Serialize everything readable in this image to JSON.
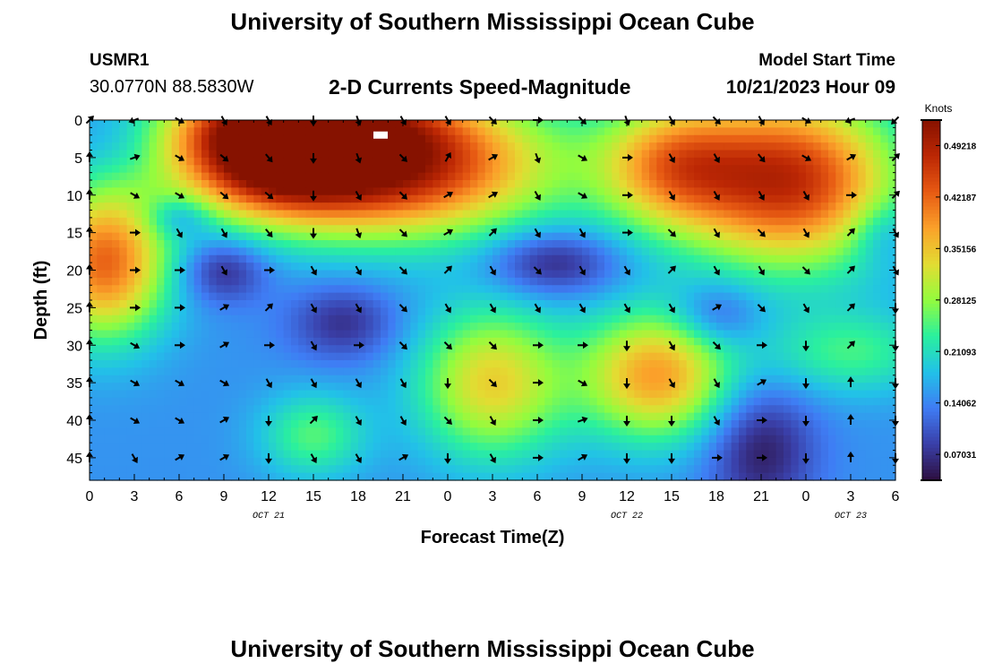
{
  "header": {
    "title": "University of Southern Mississippi Ocean Cube",
    "station_id": "USMR1",
    "station_coords": "30.0770N  88.5830W",
    "plot_subtitle": "2-D Currents Speed-Magnitude",
    "model_label": "Model Start Time",
    "model_time": "10/21/2023 Hour 09"
  },
  "footer": {
    "title": "University of Southern Mississippi Ocean Cube"
  },
  "chart_data": {
    "type": "heatmap",
    "title": "2-D Currents Speed-Magnitude",
    "xlabel": "Forecast Time(Z)",
    "ylabel": "Depth (ft)",
    "x_tick_labels": [
      "0",
      "3",
      "6",
      "9",
      "12",
      "15",
      "18",
      "21",
      "0",
      "3",
      "6",
      "9",
      "12",
      "15",
      "18",
      "21",
      "0",
      "3",
      "6"
    ],
    "x_hours": [
      0,
      3,
      6,
      9,
      12,
      15,
      18,
      21,
      24,
      27,
      30,
      33,
      36,
      39,
      42,
      45,
      48,
      51,
      54
    ],
    "x_range_hours": [
      0,
      54
    ],
    "date_labels": [
      {
        "text": "OCT 21",
        "hour": 12
      },
      {
        "text": "OCT 22",
        "hour": 36
      },
      {
        "text": "OCT 23",
        "hour": 51
      }
    ],
    "y_ticks": [
      0,
      5,
      10,
      15,
      20,
      25,
      30,
      35,
      40,
      45
    ],
    "y_range": [
      0,
      48
    ],
    "y_inverted": true,
    "colorbar": {
      "label": "Knots",
      "range": [
        0.035,
        0.527
      ],
      "ticks": [
        "0.07031",
        "0.14062",
        "0.21093",
        "0.28125",
        "0.35156",
        "0.42187",
        "0.49218"
      ],
      "tick_values": [
        0.07031,
        0.14062,
        0.21093,
        0.28125,
        0.35156,
        0.42187,
        0.49218
      ],
      "colors": [
        "#2d0f3f",
        "#3a3fa8",
        "#3f7cf4",
        "#22c1e8",
        "#2af09e",
        "#93fc3e",
        "#e3dc32",
        "#fba12a",
        "#e75a13",
        "#bc2704",
        "#861200"
      ]
    },
    "speed_field": {
      "background": 0.15,
      "features": [
        {
          "hour": 20,
          "depth": 6,
          "sh": 7.5,
          "sd": 6.5,
          "amp": 0.36
        },
        {
          "hour": 12,
          "depth": 4,
          "sh": 4.5,
          "sd": 5.5,
          "amp": 0.3
        },
        {
          "hour": 15,
          "depth": 0,
          "sh": 6.0,
          "sd": 3.5,
          "amp": 0.16
        },
        {
          "hour": 39,
          "depth": 6,
          "sh": 3.5,
          "sd": 6.0,
          "amp": 0.2
        },
        {
          "hour": 47,
          "depth": 8,
          "sh": 5.0,
          "sd": 8.0,
          "amp": 0.32
        },
        {
          "hour": 1,
          "depth": 19,
          "sh": 3.0,
          "sd": 7.0,
          "amp": 0.27
        },
        {
          "hour": 27,
          "depth": 35,
          "sh": 3.5,
          "sd": 7.0,
          "amp": 0.19
        },
        {
          "hour": 38,
          "depth": 34,
          "sh": 3.5,
          "sd": 6.0,
          "amp": 0.23
        },
        {
          "hour": 51,
          "depth": 31,
          "sh": 4.0,
          "sd": 4.0,
          "amp": 0.09
        },
        {
          "hour": 15,
          "depth": 42,
          "sh": 2.5,
          "sd": 4.0,
          "amp": 0.1
        },
        {
          "hour": 9,
          "depth": 20,
          "sh": 2.0,
          "sd": 3.0,
          "amp": -0.09
        },
        {
          "hour": 17,
          "depth": 27,
          "sh": 2.5,
          "sd": 3.5,
          "amp": -0.08
        },
        {
          "hour": 31,
          "depth": 19,
          "sh": 3.0,
          "sd": 3.0,
          "amp": -0.1
        },
        {
          "hour": 42,
          "depth": 26,
          "sh": 2.0,
          "sd": 3.0,
          "amp": -0.07
        },
        {
          "hour": 45,
          "depth": 44,
          "sh": 2.5,
          "sd": 6.0,
          "amp": -0.1
        },
        {
          "hour": 6,
          "depth": 13,
          "sh": 1.5,
          "sd": 2.0,
          "amp": -0.07
        },
        {
          "hour": 53,
          "depth": 15,
          "sh": 1.5,
          "sd": 3.0,
          "amp": -0.05
        },
        {
          "hour": 2,
          "depth": 3,
          "sh": 2.0,
          "sd": 3.0,
          "amp": -0.02
        }
      ]
    },
    "vector_hours": [
      0,
      3,
      6,
      9,
      12,
      15,
      18,
      21,
      24,
      27,
      30,
      33,
      36,
      39,
      42,
      45,
      48,
      51,
      54
    ],
    "vector_depths": [
      0,
      5,
      10,
      15,
      20,
      25,
      30,
      35,
      40,
      45
    ],
    "vector_directions_deg": [
      [
        45,
        200,
        330,
        300,
        300,
        270,
        290,
        300,
        300,
        315,
        0,
        315,
        290,
        300,
        315,
        300,
        330,
        200,
        225
      ],
      [
        90,
        20,
        330,
        320,
        310,
        270,
        290,
        315,
        60,
        30,
        290,
        330,
        0,
        300,
        300,
        310,
        330,
        30,
        45
      ],
      [
        90,
        330,
        330,
        320,
        320,
        270,
        300,
        315,
        30,
        30,
        300,
        330,
        0,
        300,
        300,
        300,
        300,
        0,
        45
      ],
      [
        90,
        0,
        300,
        300,
        310,
        270,
        290,
        315,
        30,
        45,
        300,
        300,
        0,
        315,
        300,
        315,
        300,
        45,
        300
      ],
      [
        90,
        0,
        0,
        300,
        0,
        300,
        300,
        315,
        45,
        300,
        315,
        300,
        300,
        45,
        300,
        300,
        315,
        45,
        300
      ],
      [
        90,
        0,
        0,
        30,
        45,
        300,
        300,
        315,
        300,
        300,
        300,
        300,
        300,
        300,
        30,
        315,
        300,
        45,
        270
      ],
      [
        90,
        330,
        0,
        30,
        0,
        300,
        0,
        315,
        315,
        315,
        0,
        0,
        270,
        300,
        315,
        0,
        270,
        45,
        270
      ],
      [
        90,
        330,
        330,
        330,
        300,
        300,
        300,
        300,
        270,
        315,
        0,
        330,
        270,
        300,
        300,
        30,
        270,
        90,
        270
      ],
      [
        90,
        330,
        330,
        30,
        270,
        45,
        300,
        300,
        315,
        300,
        0,
        20,
        270,
        270,
        300,
        0,
        270,
        90,
        270
      ],
      [
        90,
        300,
        30,
        30,
        270,
        300,
        300,
        30,
        270,
        300,
        0,
        30,
        270,
        270,
        0,
        0,
        270,
        90,
        270
      ]
    ],
    "marker_white_box": {
      "hour": 19.5,
      "depth": 2
    }
  }
}
